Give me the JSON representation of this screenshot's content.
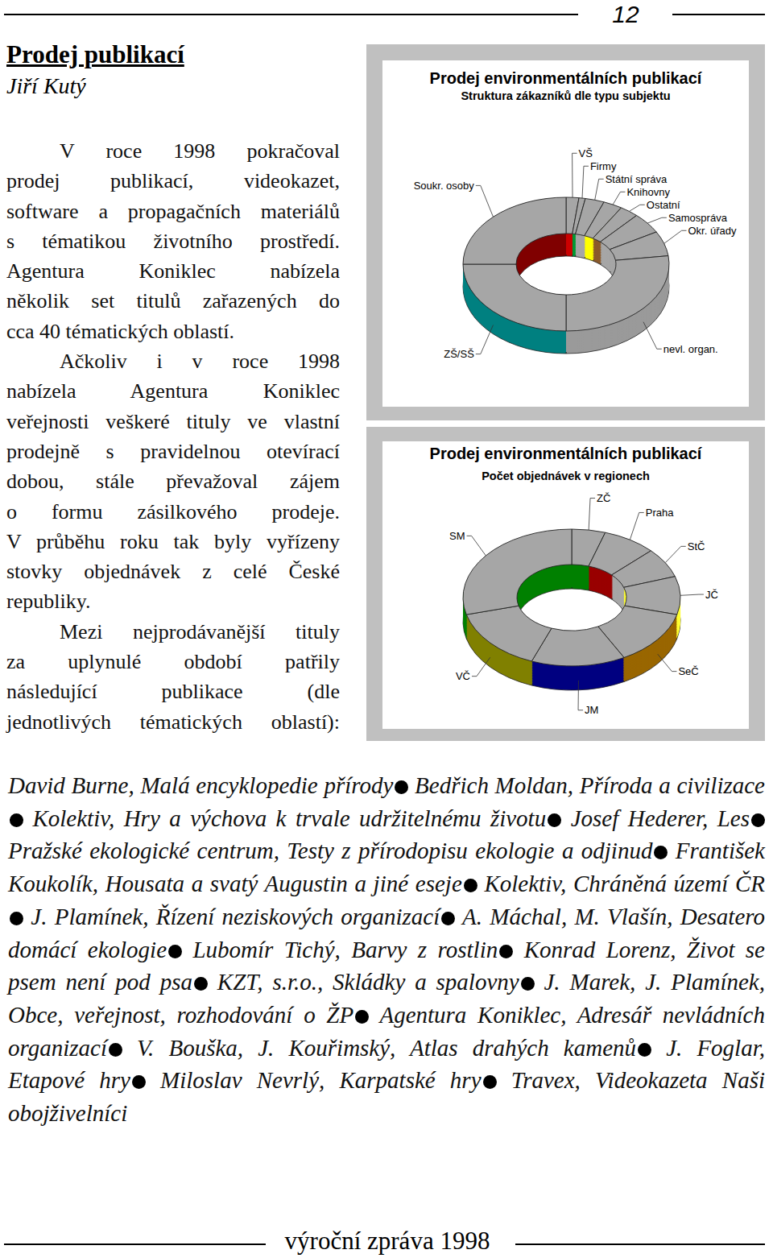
{
  "header": {
    "page_number": "12"
  },
  "article": {
    "title": "Prodej publikací",
    "author": "Jiří Kutý",
    "paragraphs": [
      [
        "V roce 1998 pokračoval",
        "prodej publikací, videokazet,",
        "software a propagačních materiálů",
        "s tématikou životního prostředí.",
        "Agentura Koniklec nabízela",
        "několik set titulů zařazených do",
        "cca 40 tématických oblastí."
      ],
      [
        "Ačkoliv i v roce 1998",
        "nabízela Agentura Koniklec",
        "veřejnosti veškeré tituly ve vlastní",
        "prodejně s pravidelnou otevírací",
        "dobou, stále převažoval zájem",
        "o formu zásilkového prodeje.",
        "V průběhu roku tak byly vyřízeny",
        "stovky objednávek z celé České",
        "republiky."
      ],
      [
        "Mezi nejprodávanější tituly",
        "za uplynulé období patřily",
        "následující publikace (dle",
        "jednotlivých tématických oblastí):"
      ]
    ]
  },
  "chart_data": [
    {
      "type": "donut",
      "title": "Prodej environmentálních publikací",
      "subtitle": "Struktura zákazníků dle typu subjektu",
      "categories": [
        "VŠ",
        "Firmy",
        "Státní správa",
        "Knihovny",
        "Ostatní",
        "Samospráva",
        "Okr. úřady",
        "nevl. organ.",
        "ZŠ/SŠ",
        "Soukr. osoby"
      ],
      "values": [
        2,
        1,
        3,
        3,
        3,
        5,
        6,
        27,
        25,
        25
      ],
      "colors": [
        "#cc0000",
        "#009933",
        "#a6a6a6",
        "#ffff00",
        "#8b5a2b",
        "#a6a6a6",
        "#a6a6a6",
        "#9a9a9a",
        "#008080",
        "#800000"
      ]
    },
    {
      "type": "donut",
      "title": "Prodej environmentálních publikací",
      "subtitle": "Počet objednávek v regionech",
      "categories": [
        "ZČ",
        "Praha",
        "StČ",
        "JČ",
        "SeČ",
        "JM",
        "VČ",
        "SM"
      ],
      "values": [
        5,
        8,
        7,
        9,
        13,
        14,
        15,
        29
      ],
      "colors": [
        "#008000",
        "#990000",
        "#a6a6a6",
        "#ffff33",
        "#996600",
        "#000080",
        "#808000",
        "#008000"
      ]
    }
  ],
  "book_list": [
    "David Burne, Malá encyklopedie přírody",
    "Bedřich Moldan, Příroda a civilizace",
    "Kolektiv, Hry a výchova k trvale udržitelnému životu",
    "Josef Hederer, Les",
    "Pražské ekologické centrum, Testy z přírodopisu ekologie a odjinud",
    "František Koukolík, Housata a svatý Augustin a jiné eseje",
    "Kolektiv, Chráněná území ČR",
    "J. Plamínek, Řízení neziskových organizací",
    "A. Máchal, M. Vlašín, Desatero domácí ekologie",
    "Lubomír Tichý, Barvy z rostlin",
    "Konrad Lorenz, Život se psem není pod psa",
    "KZT, s.r.o., Skládky a spalovny",
    "J. Marek, J. Plamínek, Obce, veřejnost, rozhodování o ŽP",
    "Agentura Koniklec, Adresář nevládních organizací",
    "V. Bouška, J. Kouřimský, Atlas drahých kamenů",
    "J. Foglar, Etapové hry",
    "Miloslav Nevrlý, Karpatské hry",
    "Travex, Videokazeta Naši obojživelníci"
  ],
  "footer": {
    "text": "výroční zpráva 1998"
  }
}
